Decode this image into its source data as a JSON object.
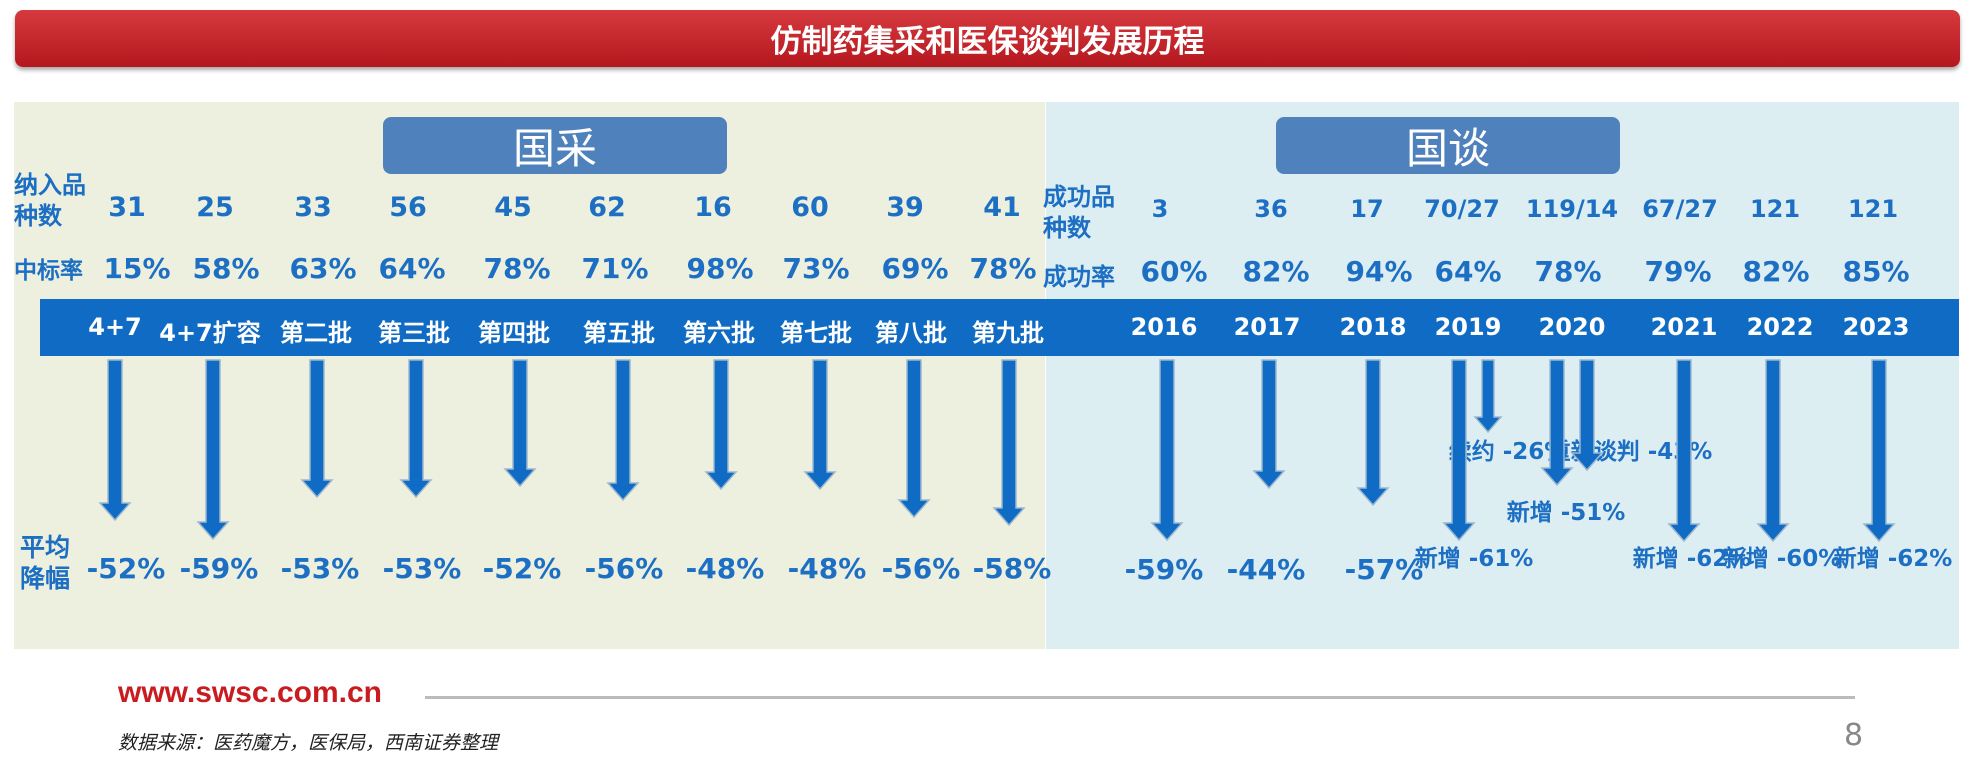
{
  "title": "仿制药集采和医保谈判发展历程",
  "colors": {
    "title_bar": "#c8282d",
    "accent_blue": "#0f6bc3",
    "text_blue": "#1d6fc3",
    "left_panel": "#edf0df",
    "right_panel": "#ddeef3",
    "tag": "#4f81bd"
  },
  "vbp": {
    "tag": "国采",
    "row_labels": {
      "count": "纳入品种数",
      "rate": "中标率",
      "cut": "平均降幅"
    },
    "batches": [
      {
        "name": "4+7",
        "count": "31",
        "rate": "15%",
        "cut": "-52%"
      },
      {
        "name": "4+7扩容",
        "count": "25",
        "rate": "58%",
        "cut": "-59%"
      },
      {
        "name": "第二批",
        "count": "33",
        "rate": "63%",
        "cut": "-53%"
      },
      {
        "name": "第三批",
        "count": "56",
        "rate": "64%",
        "cut": "-53%"
      },
      {
        "name": "第四批",
        "count": "45",
        "rate": "78%",
        "cut": "-52%"
      },
      {
        "name": "第五批",
        "count": "62",
        "rate": "71%",
        "cut": "-56%"
      },
      {
        "name": "第六批",
        "count": "16",
        "rate": "98%",
        "cut": "-48%"
      },
      {
        "name": "第七批",
        "count": "60",
        "rate": "73%",
        "cut": "-48%"
      },
      {
        "name": "第八批",
        "count": "39",
        "rate": "69%",
        "cut": "-56%"
      },
      {
        "name": "第九批",
        "count": "41",
        "rate": "78%",
        "cut": "-58%"
      }
    ]
  },
  "nrdl": {
    "tag": "国谈",
    "row_labels": {
      "count": "成功品种数",
      "rate": "成功率"
    },
    "years": [
      {
        "name": "2016",
        "count": "3",
        "rate": "60%",
        "cut": "-59%"
      },
      {
        "name": "2017",
        "count": "36",
        "rate": "82%",
        "cut": "-44%"
      },
      {
        "name": "2018",
        "count": "17",
        "rate": "94%",
        "cut": "-57%"
      },
      {
        "name": "2019",
        "count": "70/27",
        "rate": "64%",
        "annotations": [
          "新增 -61%",
          "续约 -26%"
        ]
      },
      {
        "name": "2020",
        "count": "119/14",
        "rate": "78%",
        "annotations": [
          "新增 -51%",
          "重新谈判 -43%"
        ]
      },
      {
        "name": "2021",
        "count": "67/27",
        "rate": "79%",
        "annotations": [
          "新增 -62%"
        ]
      },
      {
        "name": "2022",
        "count": "121",
        "rate": "82%",
        "annotations": [
          "新增 -60%"
        ]
      },
      {
        "name": "2023",
        "count": "121",
        "rate": "85%",
        "annotations": [
          "新增 -62%"
        ]
      }
    ]
  },
  "footer": {
    "url": "www.swsc.com.cn",
    "source": "数据来源：医药魔方，医保局，西南证券整理",
    "page": "8"
  }
}
